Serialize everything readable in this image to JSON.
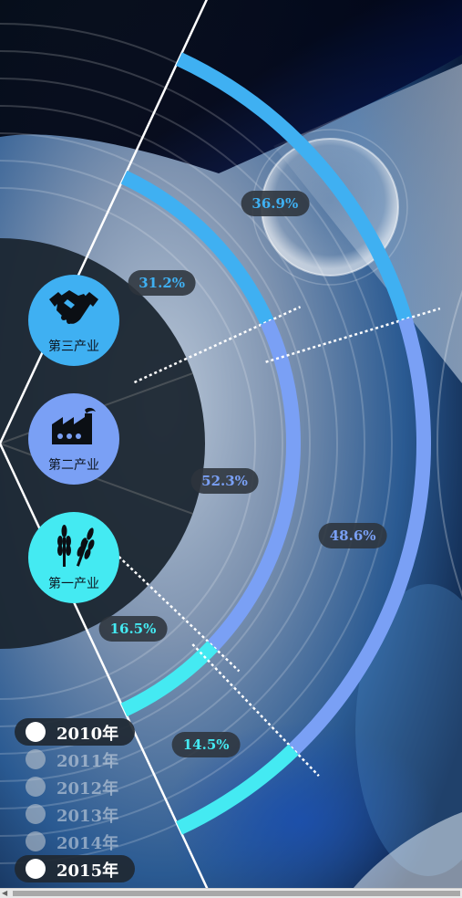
{
  "chart_data": {
    "type": "radial_bar",
    "title": "",
    "series": [
      {
        "name": "2010年",
        "values": [
          31.2,
          52.3,
          16.5
        ]
      },
      {
        "name": "2015年",
        "values": [
          36.9,
          48.6,
          14.5
        ]
      }
    ],
    "categories": [
      "第三产业",
      "第二产业",
      "第一产业"
    ],
    "labels": {
      "2010年": [
        "31.2%",
        "52.3%",
        "16.5%"
      ],
      "2015年": [
        "36.9%",
        "48.6%",
        "14.5%"
      ]
    }
  },
  "sectors": [
    {
      "label": "第三产业",
      "icon": "handshake-icon",
      "color": "#3fb0f2"
    },
    {
      "label": "第二产业",
      "icon": "factory-icon",
      "color": "#7aa0f5"
    },
    {
      "label": "第一产业",
      "icon": "wheat-icon",
      "color": "#44eaf2"
    }
  ],
  "colors": {
    "tertiary": "#3fb0f2",
    "secondary": "#7aa0f5",
    "primary": "#44eaf2",
    "pill_bg": "#2d343c",
    "dark_panel": "#1b2530"
  },
  "years": [
    {
      "label": "2010年",
      "active": true
    },
    {
      "label": "2011年",
      "active": false
    },
    {
      "label": "2012年",
      "active": false
    },
    {
      "label": "2013年",
      "active": false
    },
    {
      "label": "2014年",
      "active": false
    },
    {
      "label": "2015年",
      "active": true
    }
  ]
}
